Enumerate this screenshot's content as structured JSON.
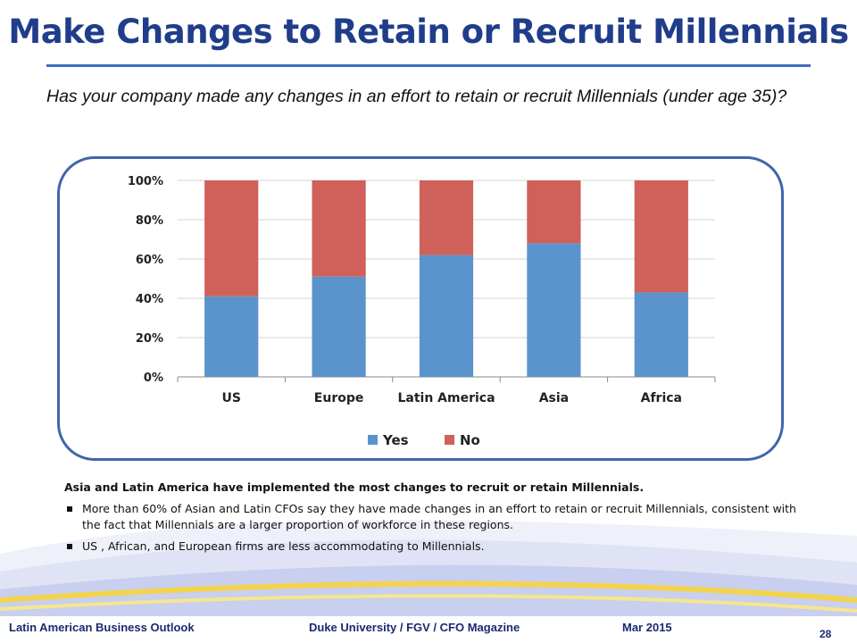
{
  "slide": {
    "title": "Make Changes to Retain or Recruit Millennials",
    "question": "Has your company made any changes in an effort to retain or recruit Millennials (under age 35)?",
    "summary_lead": "Asia and Latin America have implemented the most changes to recruit or retain Millennials.",
    "bullets": [
      "More than 60% of Asian and Latin CFOs say they have made changes in an effort to retain or recruit Millennials, consistent with the fact that Millennials are a larger proportion of workforce in these regions.",
      "US , African, and European firms are less accommodating to Millennials."
    ]
  },
  "footer": {
    "left": "Latin American Business Outlook",
    "middle": "Duke University / FGV / CFO Magazine",
    "date": "Mar 2015",
    "page": "28"
  },
  "colors": {
    "title": "#1f3d8a",
    "yes": "#5b93cc",
    "no": "#cf605a",
    "frame": "#3f66a8"
  },
  "chart_data": {
    "type": "bar",
    "stacked": true,
    "categories": [
      "US",
      "Europe",
      "Latin America",
      "Asia",
      "Africa"
    ],
    "series": [
      {
        "name": "Yes",
        "color": "#5b93cc",
        "values": [
          41,
          51,
          62,
          68,
          43
        ]
      },
      {
        "name": "No",
        "color": "#cf605a",
        "values": [
          59,
          49,
          38,
          32,
          57
        ]
      }
    ],
    "y_ticks": [
      "0%",
      "20%",
      "40%",
      "60%",
      "80%",
      "100%"
    ],
    "ylim": [
      0,
      100
    ],
    "grid": true,
    "legend": "bottom"
  }
}
